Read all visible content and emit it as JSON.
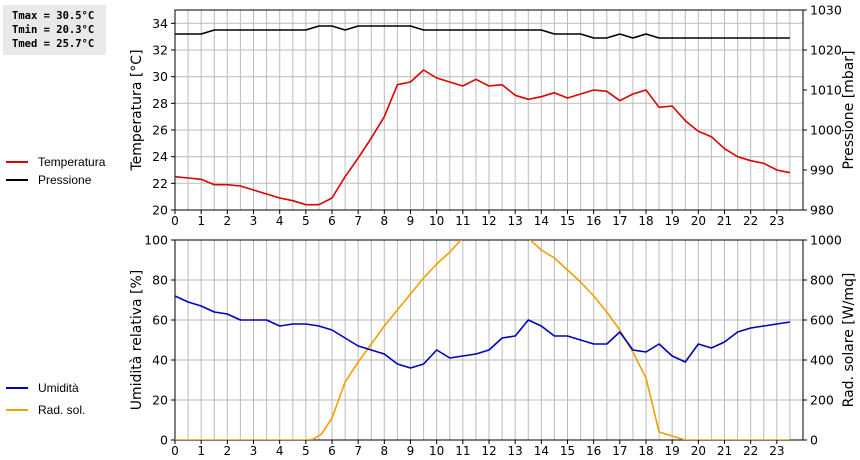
{
  "stats": {
    "tmax": "Tmax = 30.5°C",
    "tmin": "Tmin = 20.3°C",
    "tmed": "Tmed = 25.7°C"
  },
  "colors": {
    "temperature": "#dd0000",
    "pressure": "#000000",
    "humidity": "#0000bb",
    "radiation": "#f0a000",
    "grid": "#bbbbbb"
  },
  "chart_data": [
    {
      "type": "line",
      "x_ticks": [
        "0",
        "1",
        "2",
        "3",
        "4",
        "5",
        "6",
        "7",
        "8",
        "9",
        "10",
        "11",
        "12",
        "13",
        "14",
        "15",
        "16",
        "17",
        "18",
        "19",
        "20",
        "21",
        "22",
        "23"
      ],
      "xlim": [
        0,
        24
      ],
      "ylabel_left": "Temperatura [°C]",
      "ylabel_right": "Pressione [mbar]",
      "ylim_left": [
        20,
        35
      ],
      "yticks_left": [
        20,
        22,
        24,
        26,
        28,
        30,
        32,
        34
      ],
      "ylim_right": [
        980,
        1030
      ],
      "yticks_right": [
        980,
        990,
        1000,
        1010,
        1020,
        1030
      ],
      "grid": true,
      "legend_position": "left",
      "series": [
        {
          "name": "Temperatura",
          "axis": "left",
          "color": "#dd0000",
          "x": [
            0,
            0.5,
            1,
            1.5,
            2,
            2.5,
            3,
            3.5,
            4,
            4.5,
            5,
            5.5,
            6,
            6.5,
            7,
            7.5,
            8,
            8.5,
            9,
            9.5,
            10,
            10.5,
            11,
            11.5,
            12,
            12.5,
            13,
            13.5,
            14,
            14.5,
            15,
            15.5,
            16,
            16.5,
            17,
            17.5,
            18,
            18.5,
            19,
            19.5,
            20,
            20.5,
            21,
            21.5,
            22,
            22.5,
            23,
            23.5
          ],
          "values": [
            22.5,
            22.4,
            22.3,
            21.9,
            21.9,
            21.8,
            21.5,
            21.2,
            20.9,
            20.7,
            20.4,
            20.4,
            20.9,
            22.5,
            23.9,
            25.4,
            27.0,
            29.4,
            29.6,
            30.5,
            29.9,
            29.6,
            29.3,
            29.8,
            29.3,
            29.4,
            28.6,
            28.3,
            28.5,
            28.8,
            28.4,
            28.7,
            29.0,
            28.9,
            28.2,
            28.7,
            29.0,
            27.7,
            27.8,
            26.7,
            25.9,
            25.5,
            24.6,
            24.0,
            23.7,
            23.5,
            23.0,
            22.8
          ]
        },
        {
          "name": "Pressione",
          "axis": "right",
          "color": "#000000",
          "x": [
            0,
            1,
            1.5,
            2,
            3,
            4,
            5,
            5.5,
            6,
            6.5,
            7,
            8,
            9,
            9.5,
            10,
            11,
            12,
            13,
            14,
            14.5,
            15,
            15.5,
            16,
            16.5,
            17,
            17.5,
            18,
            18.5,
            19,
            20,
            21,
            22,
            23,
            23.5
          ],
          "values": [
            1024,
            1024,
            1025,
            1025,
            1025,
            1025,
            1025,
            1026,
            1026,
            1025,
            1026,
            1026,
            1026,
            1025,
            1025,
            1025,
            1025,
            1025,
            1025,
            1024,
            1024,
            1024,
            1023,
            1023,
            1024,
            1023,
            1024,
            1023,
            1023,
            1023,
            1023,
            1023,
            1023,
            1023
          ]
        }
      ]
    },
    {
      "type": "line",
      "x_ticks": [
        "0",
        "1",
        "2",
        "3",
        "4",
        "5",
        "6",
        "7",
        "8",
        "9",
        "10",
        "11",
        "12",
        "13",
        "14",
        "15",
        "16",
        "17",
        "18",
        "19",
        "20",
        "21",
        "22",
        "23"
      ],
      "xlim": [
        0,
        24
      ],
      "ylabel_left": "Umidità relativa [%]",
      "ylabel_right": "Rad. solare [W/mq]",
      "ylim_left": [
        0,
        100
      ],
      "yticks_left": [
        0,
        20,
        40,
        60,
        80,
        100
      ],
      "ylim_right": [
        0,
        1000
      ],
      "yticks_right": [
        0,
        200,
        400,
        600,
        800,
        1000
      ],
      "grid": true,
      "legend_position": "left",
      "series": [
        {
          "name": "Umidità",
          "axis": "left",
          "color": "#0000bb",
          "x": [
            0,
            0.5,
            1,
            1.5,
            2,
            2.5,
            3,
            3.5,
            4,
            4.5,
            5,
            5.5,
            6,
            6.5,
            7,
            7.5,
            8,
            8.5,
            9,
            9.5,
            10,
            10.5,
            11,
            11.5,
            12,
            12.5,
            13,
            13.5,
            14,
            14.5,
            15,
            15.5,
            16,
            16.5,
            17,
            17.5,
            18,
            18.5,
            19,
            19.5,
            20,
            20.5,
            21,
            21.5,
            22,
            22.5,
            23,
            23.5
          ],
          "values": [
            72,
            69,
            67,
            64,
            63,
            60,
            60,
            60,
            57,
            58,
            58,
            57,
            55,
            51,
            47,
            45,
            43,
            38,
            36,
            38,
            45,
            41,
            42,
            43,
            45,
            51,
            52,
            60,
            57,
            52,
            52,
            50,
            48,
            48,
            54,
            45,
            44,
            48,
            42,
            39,
            48,
            46,
            49,
            54,
            56,
            57,
            58,
            59
          ]
        },
        {
          "name": "Rad. sol.",
          "axis": "right",
          "color": "#f0a000",
          "x": [
            0,
            5,
            5.3,
            5.6,
            6,
            6.5,
            7,
            7.5,
            8,
            8.5,
            9,
            9.5,
            10,
            10.5,
            11,
            11.5,
            12,
            12.5,
            13,
            13.5,
            14,
            14.5,
            15,
            15.5,
            16,
            16.5,
            17,
            17.5,
            18,
            18.5,
            19,
            19.5,
            20,
            23.5
          ],
          "values": [
            0,
            0,
            5,
            30,
            110,
            290,
            390,
            480,
            570,
            650,
            730,
            810,
            880,
            940,
            1010,
            1060,
            1090,
            1090,
            1060,
            1010,
            950,
            910,
            850,
            790,
            720,
            640,
            550,
            440,
            310,
            40,
            20,
            0,
            0,
            0
          ]
        }
      ]
    }
  ]
}
